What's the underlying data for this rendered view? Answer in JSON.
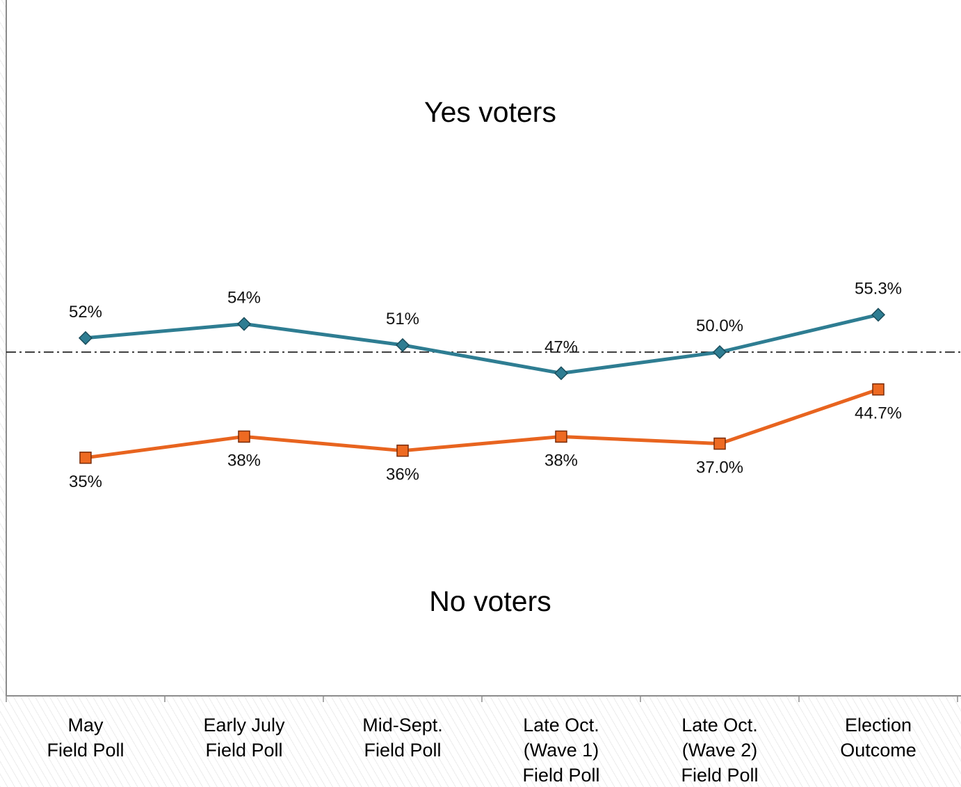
{
  "chart_data": {
    "type": "line",
    "categories": [
      [
        "May",
        "Field Poll"
      ],
      [
        "Early July",
        "Field Poll"
      ],
      [
        "Mid-Sept.",
        "Field Poll"
      ],
      [
        "Late Oct.",
        "(Wave 1)",
        "Field Poll"
      ],
      [
        "Late Oct.",
        "(Wave 2)",
        "Field Poll"
      ],
      [
        "Election",
        "Outcome"
      ]
    ],
    "series": [
      {
        "values": [
          52,
          54,
          51,
          47,
          50.0,
          55.3
        ],
        "labels": [
          "52%",
          "54%",
          "51%",
          "47%",
          "50.0%",
          "55.3%"
        ],
        "color": "#2e7d92",
        "marker": "diamond"
      },
      {
        "values": [
          35,
          38,
          36,
          38,
          37.0,
          44.7
        ],
        "labels": [
          "35%",
          "38%",
          "36%",
          "38%",
          "37.0%",
          "44.7%"
        ],
        "color": "#e8641f",
        "marker": "square"
      }
    ],
    "reference_line": 50,
    "region_labels": {
      "top": "Yes voters",
      "bottom": "No voters"
    },
    "ylim": [
      0,
      100
    ],
    "grid": false,
    "legend": "none"
  }
}
